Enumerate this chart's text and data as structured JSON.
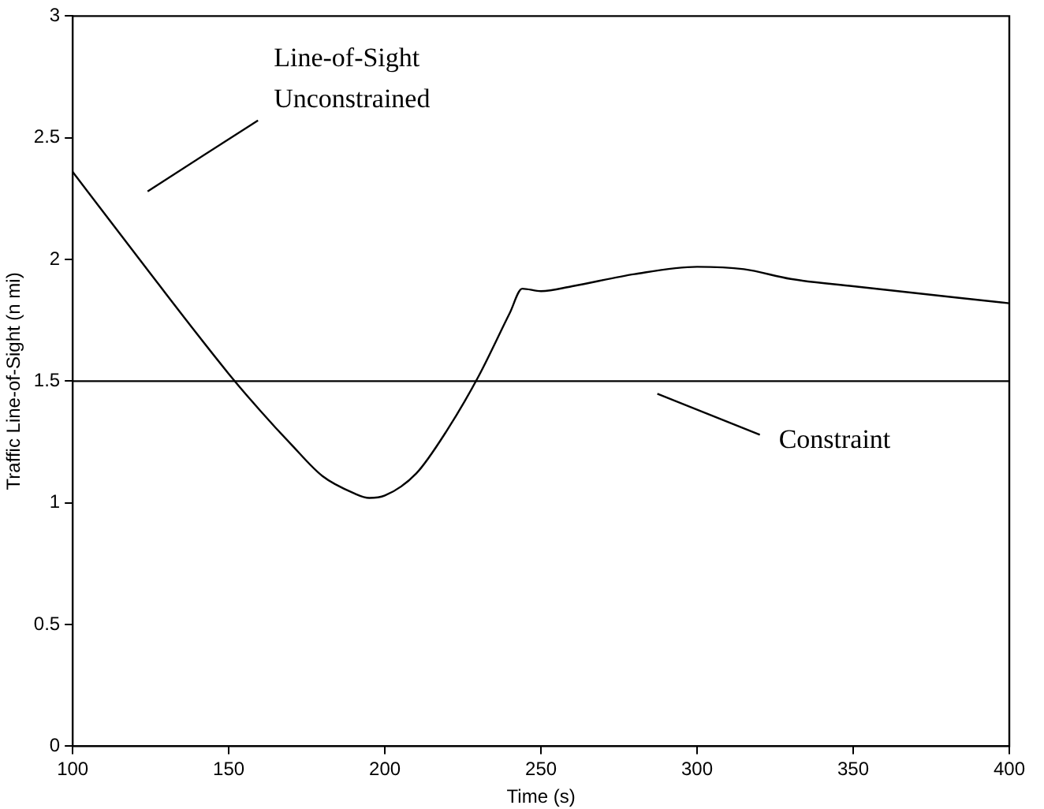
{
  "chart_data": {
    "type": "line",
    "xlabel": "Time (s)",
    "ylabel": "Traffic Line-of-Sight (n mi)",
    "x": [
      100,
      125,
      150,
      160,
      170,
      180,
      190,
      195,
      200,
      210,
      220,
      230,
      240,
      244,
      250,
      260,
      280,
      300,
      315,
      330,
      350,
      400
    ],
    "values": [
      2.36,
      1.94,
      1.53,
      1.38,
      1.24,
      1.11,
      1.04,
      1.02,
      1.03,
      1.12,
      1.3,
      1.52,
      1.78,
      1.88,
      1.87,
      1.89,
      1.94,
      1.97,
      1.96,
      1.92,
      1.89,
      1.82
    ],
    "color": "#000000",
    "xlim": [
      100,
      400
    ],
    "ylim": [
      0,
      3
    ],
    "xticks": [
      100,
      150,
      200,
      250,
      300,
      350,
      400
    ],
    "yticks": [
      0,
      0.5,
      1,
      1.5,
      2,
      2.5,
      3
    ],
    "grid": false,
    "legend": false,
    "marker": "none",
    "line_style": "solid",
    "ref_lines": [
      {
        "axis": "y",
        "value": 1.5,
        "label": "Constraint",
        "color": "#000000"
      }
    ],
    "annotations": [
      "Line-of-Sight\nUnconstrained"
    ]
  }
}
